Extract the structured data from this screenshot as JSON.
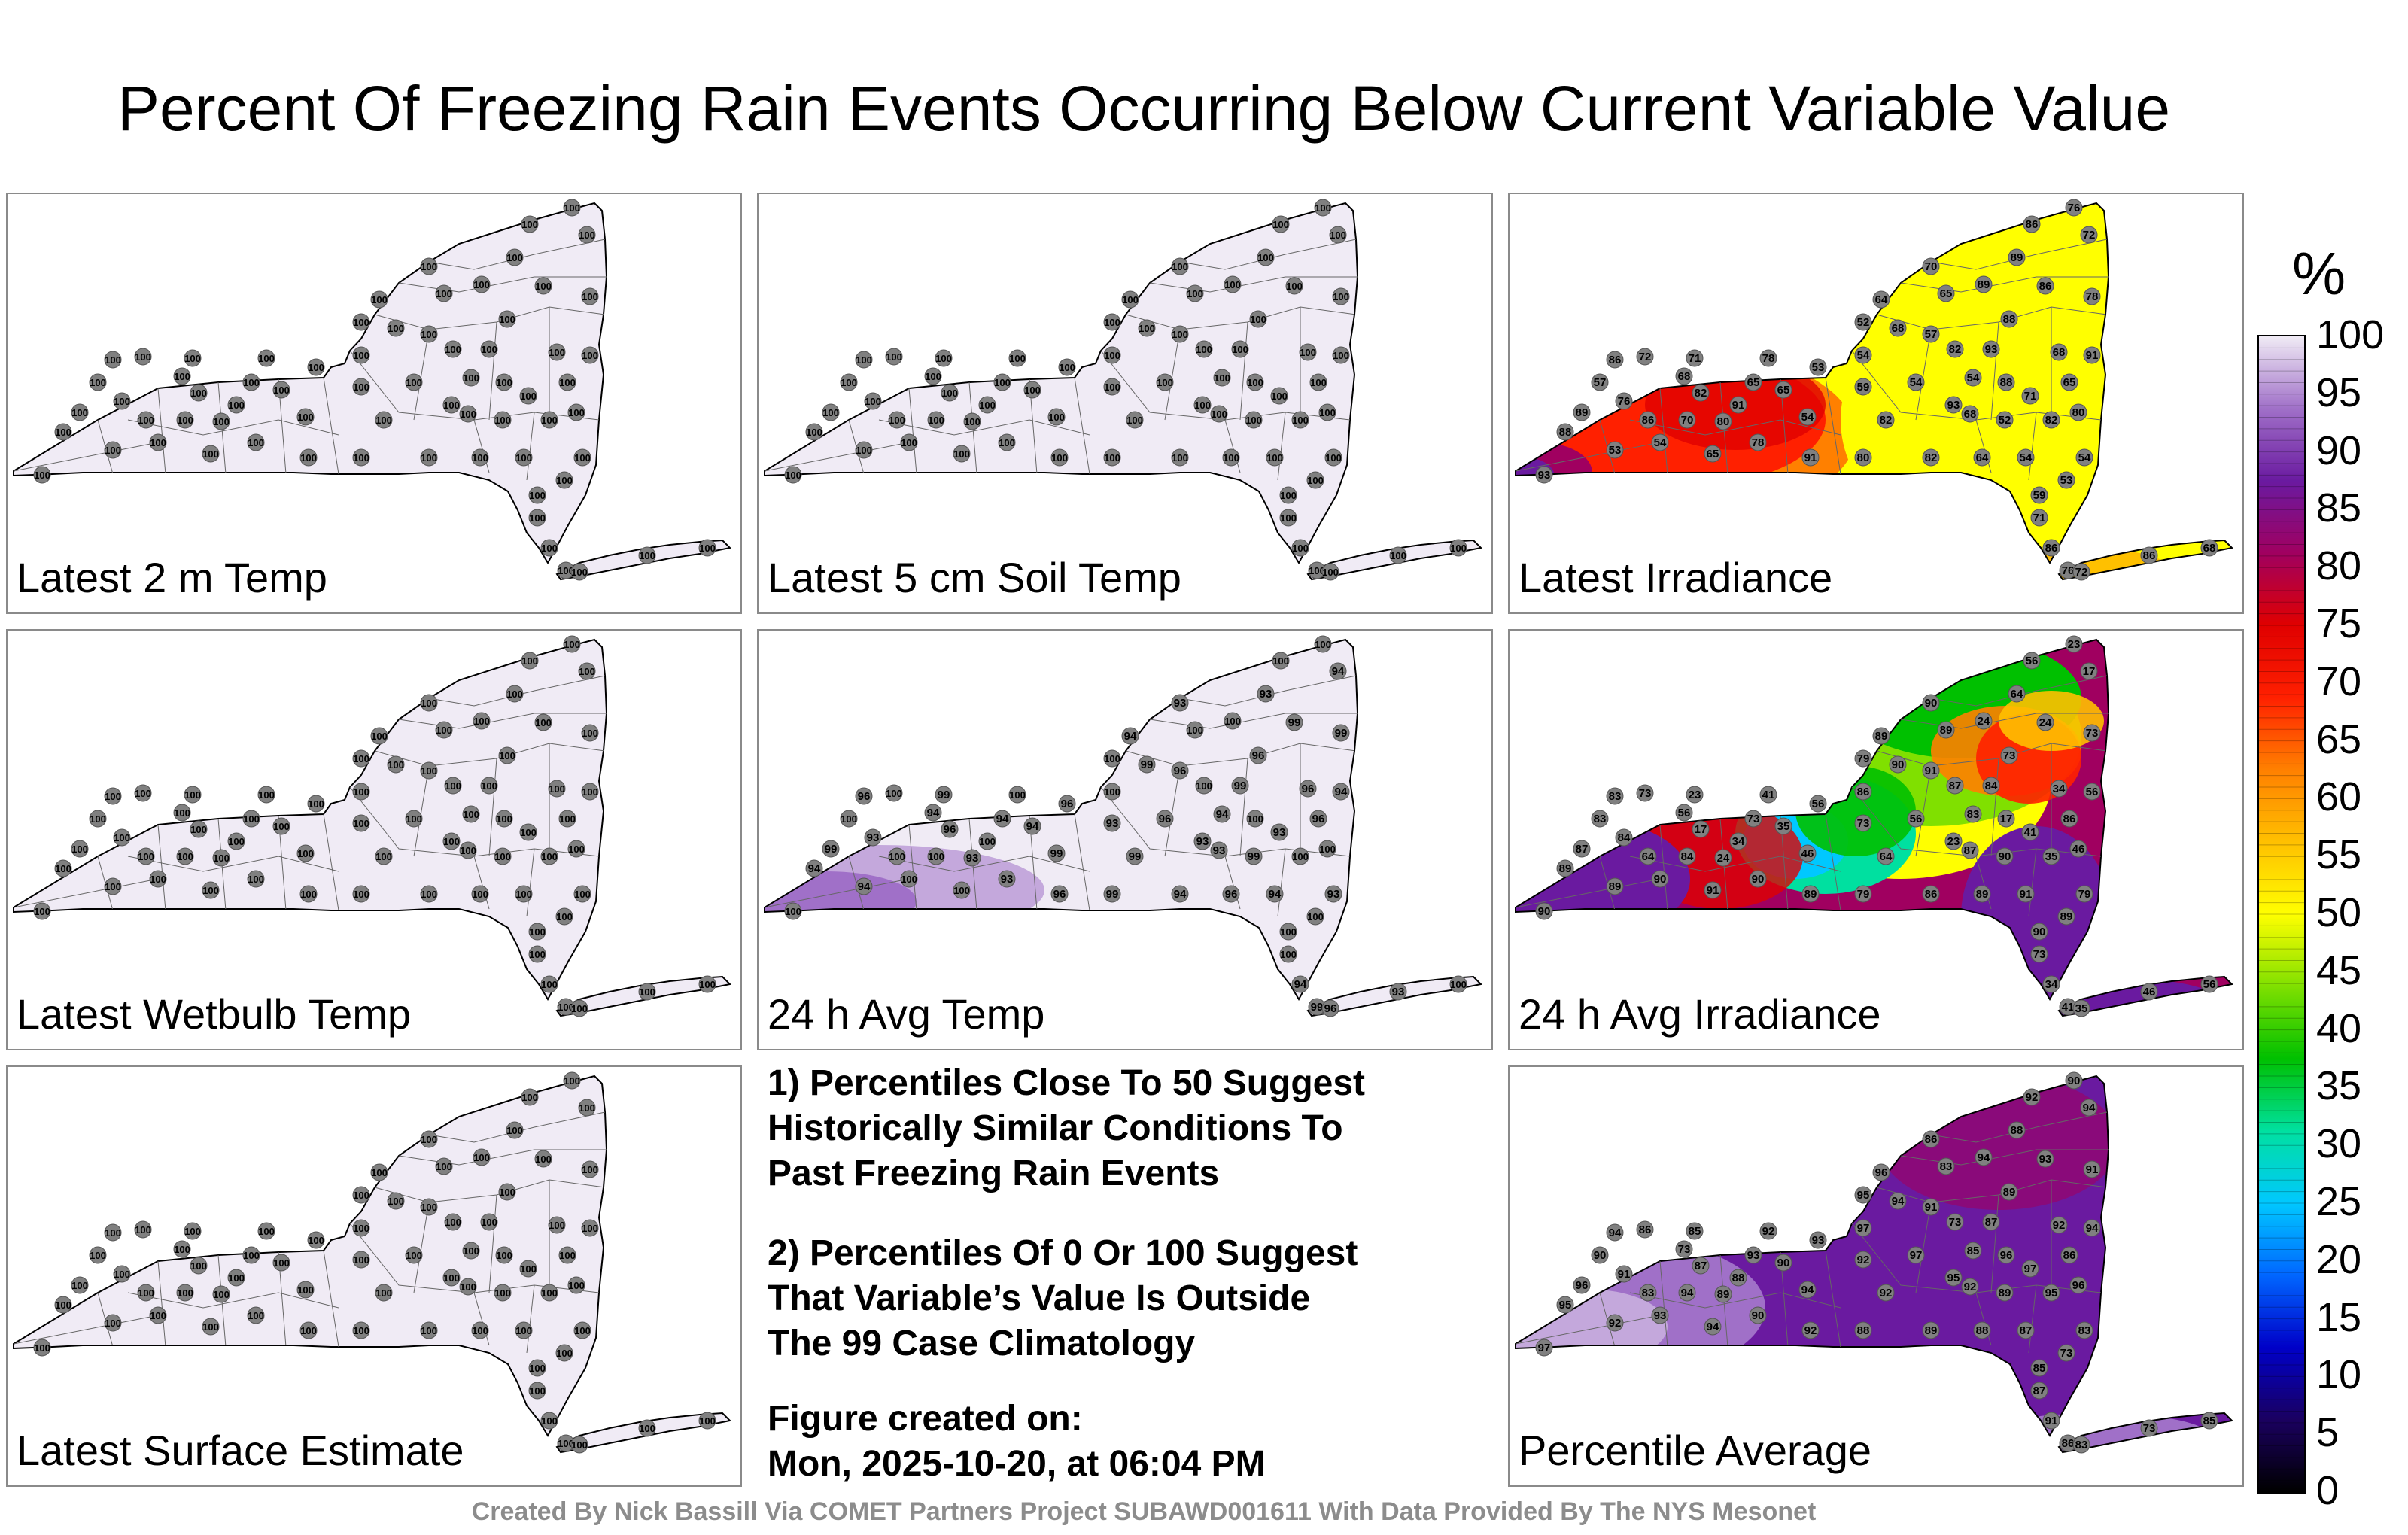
{
  "title": "Percent Of Freezing Rain Events Occurring Below Current Variable Value",
  "panels": [
    {
      "label": "Latest 2 m Temp",
      "mode": "uniform",
      "values": [
        100
      ]
    },
    {
      "label": "Latest 5 cm Soil Temp",
      "mode": "uniform",
      "values": [
        100
      ]
    },
    {
      "label": "Latest Irradiance",
      "mode": "west-east",
      "values": [
        93,
        88,
        89,
        86,
        76,
        72,
        86,
        68,
        71,
        82,
        80,
        91,
        78,
        65,
        54,
        53,
        59,
        54,
        52,
        64,
        68,
        57,
        70,
        65,
        82,
        54
      ]
    },
    {
      "label": "Latest Wetbulb Temp",
      "mode": "uniform",
      "values": [
        100
      ]
    },
    {
      "label": "24 h Avg Temp",
      "mode": "mostly-100",
      "values": [
        100,
        94,
        99,
        96,
        93,
        100
      ]
    },
    {
      "label": "24 h Avg Irradiance",
      "mode": "mixed",
      "values": [
        90,
        89,
        87,
        83,
        84,
        73,
        64,
        56,
        23,
        17,
        24,
        34,
        41,
        35,
        46,
        56,
        73,
        86,
        79,
        89,
        90,
        91
      ]
    },
    {
      "label": "Latest Surface Estimate",
      "mode": "uniform",
      "values": [
        100
      ]
    },
    {
      "label": "Percentile Average",
      "mode": "average",
      "values": [
        97,
        95,
        96,
        94,
        91,
        86,
        83,
        73,
        85,
        87,
        89,
        88,
        92,
        90,
        94,
        93,
        92
      ]
    }
  ],
  "notes": {
    "note1": [
      "1) Percentiles Close To 50 Suggest",
      "Historically Similar Conditions To",
      "Past Freezing Rain Events"
    ],
    "note2": [
      "2) Percentiles Of 0 Or 100 Suggest",
      "That Variable’s Value Is Outside",
      "The 99 Case Climatology"
    ],
    "created_label": "Figure created on:",
    "created_value": "Mon, 2025-10-20, at 06:04 PM"
  },
  "colorbar": {
    "unit": "%",
    "ticks": [
      "100",
      "95",
      "90",
      "85",
      "80",
      "75",
      "70",
      "65",
      "60",
      "55",
      "50",
      "45",
      "40",
      "35",
      "30",
      "25",
      "20",
      "15",
      "10",
      "5",
      "0"
    ],
    "colors": [
      "#000000",
      "#1a0060",
      "#0000c8",
      "#0066ff",
      "#00c8ff",
      "#00e0a0",
      "#00c000",
      "#80e000",
      "#ffff00",
      "#ffc000",
      "#ff8000",
      "#ff2000",
      "#e00000",
      "#a00060",
      "#6a1aa0",
      "#a070c8",
      "#f0ebf5"
    ]
  },
  "footer": "Created By Nick Bassill Via COMET Partners Project SUBAWD001611 With Data Provided By The NYS Mesonet"
}
